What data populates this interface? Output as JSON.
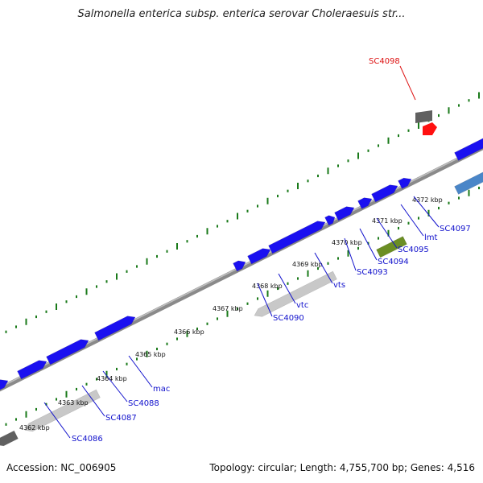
{
  "title": "Salmonella enterica subsp. enterica serovar Choleraesuis str...",
  "footer": {
    "accession": "Accession: NC_006905",
    "topology": "Topology: circular; Length: 4,755,700 bp; Genes: 4,516"
  },
  "colors": {
    "forward_gene": "#1a10f0",
    "selected_gene": "#ff1010",
    "reverse_gene_light": "#c8c8c8",
    "reverse_gene_green": "#6b8e23",
    "reverse_gene_steelblue": "#4a86c8",
    "reverse_gene_dark": "#606060",
    "backbone": "#8a8a8a",
    "ticks": "#1a7a1a",
    "gene_label": "#1010cc",
    "selected_label": "#dd1111"
  },
  "kbp_ticks": [
    "4362 kbp",
    "4363 kbp",
    "4364 kbp",
    "4365 kbp",
    "4366 kbp",
    "4367 kbp",
    "4368 kbp",
    "4369 kbp",
    "4370 kbp",
    "4371 kbp",
    "4372 kbp"
  ],
  "gene_labels": [
    {
      "text": "SC4086",
      "selected": false
    },
    {
      "text": "SC4087",
      "selected": false
    },
    {
      "text": "SC4088",
      "selected": false
    },
    {
      "text": "mac",
      "selected": false
    },
    {
      "text": "SC4090",
      "selected": false
    },
    {
      "text": "vtc",
      "selected": false
    },
    {
      "text": "vts",
      "selected": false
    },
    {
      "text": "SC4093",
      "selected": false
    },
    {
      "text": "SC4094",
      "selected": false
    },
    {
      "text": "SC4095",
      "selected": false
    },
    {
      "text": "lmt",
      "selected": false
    },
    {
      "text": "SC4097",
      "selected": false
    },
    {
      "text": "SC4098",
      "selected": true
    }
  ]
}
